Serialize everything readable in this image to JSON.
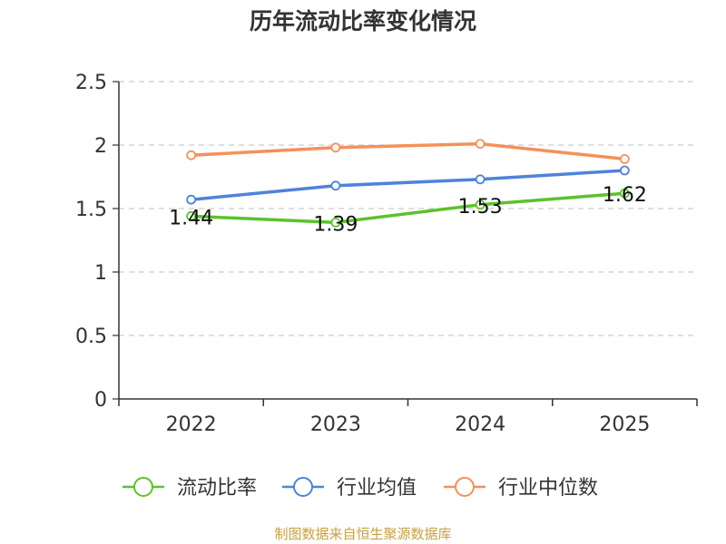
{
  "chart_data": {
    "type": "line",
    "title": "历年流动比率变化情况",
    "xlabel": "",
    "ylabel": "",
    "categories": [
      "2022",
      "2023",
      "2024",
      "2025"
    ],
    "ylim": [
      0,
      2.5
    ],
    "yticks": [
      "0",
      "0.5",
      "1",
      "1.5",
      "2",
      "2.5"
    ],
    "grid": true,
    "legend_position": "bottom",
    "series": [
      {
        "name": "流动比率",
        "color": "#5cc22b",
        "values": [
          1.44,
          1.39,
          1.53,
          1.62
        ],
        "labels": [
          "1.44",
          "1.39",
          "1.53",
          "1.62"
        ]
      },
      {
        "name": "行业均值",
        "color": "#4f82dc",
        "values": [
          1.57,
          1.68,
          1.73,
          1.8
        ]
      },
      {
        "name": "行业中位数",
        "color": "#f5905a",
        "values": [
          1.92,
          1.98,
          2.01,
          1.89
        ]
      }
    ]
  },
  "footer": {
    "source": "制图数据来自恒生聚源数据库"
  }
}
